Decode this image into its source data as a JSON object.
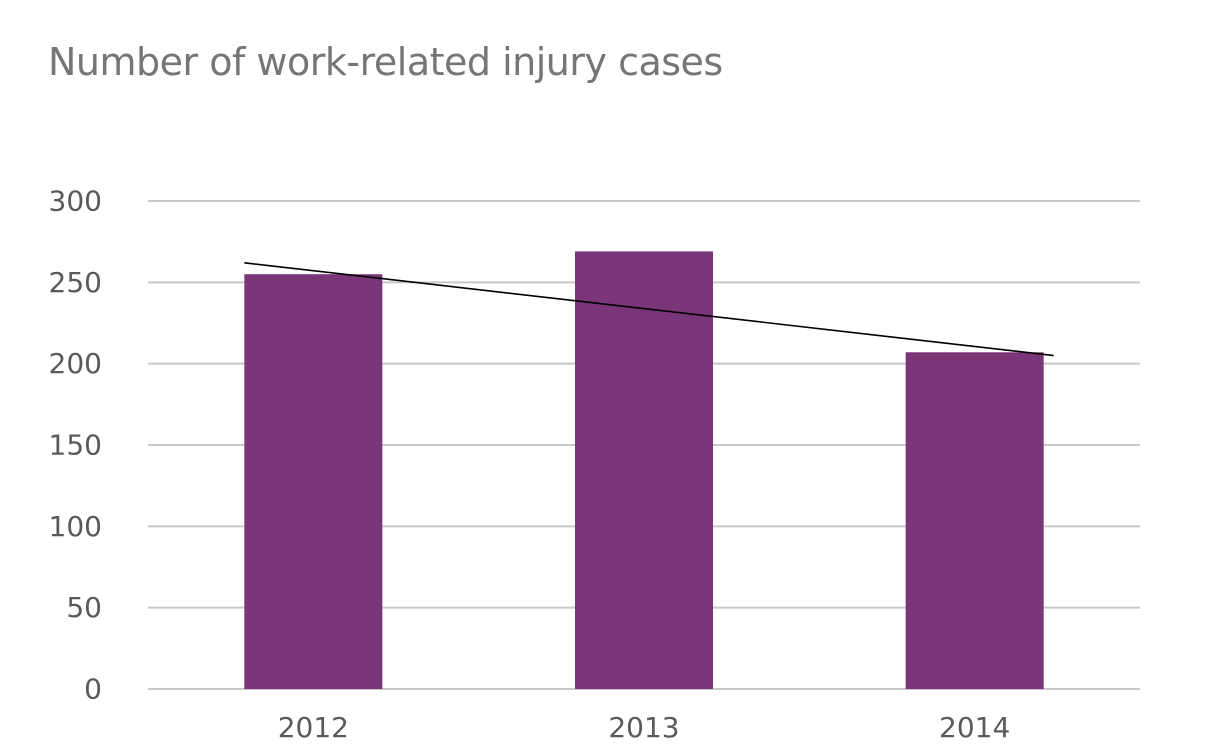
{
  "chart_data": {
    "type": "bar",
    "title": "Number of work-related injury cases",
    "xlabel": "",
    "ylabel": "",
    "categories": [
      "2012",
      "2013",
      "2014"
    ],
    "values": [
      255,
      269,
      207
    ],
    "ylim": [
      0,
      300
    ],
    "yticks": [
      "0",
      "50",
      "100",
      "150",
      "200",
      "250",
      "300"
    ],
    "grid": true,
    "legend": "none",
    "trendline": {
      "type": "linear",
      "start": 262,
      "end": 205
    },
    "colors": {
      "bar": "#7b3579",
      "grid": "#c8c8c8",
      "trendline": "#000000",
      "title": "#767676",
      "tick_label": "#5a5a5a"
    }
  }
}
